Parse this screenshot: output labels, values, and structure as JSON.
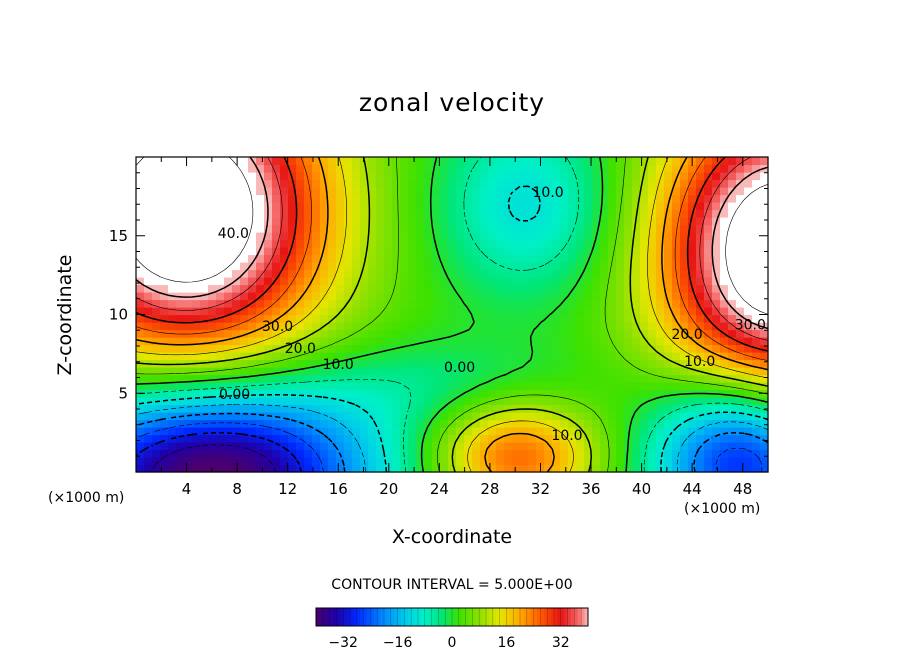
{
  "chart_data": {
    "type": "heatmap",
    "title": "zonal velocity",
    "xlabel": "X-coordinate",
    "ylabel": "Z-coordinate",
    "x_unit": "(×1000 m)",
    "y_unit": "(×1000 m)",
    "xlim": [
      0,
      50
    ],
    "ylim": [
      0,
      20
    ],
    "x_ticks": [
      4,
      8,
      12,
      16,
      20,
      24,
      28,
      32,
      36,
      40,
      44,
      48
    ],
    "y_ticks": [
      5,
      10,
      15
    ],
    "contour_interval": "CONTOUR INTERVAL = 5.000E+00",
    "contour_labels": [
      {
        "text": "40.0",
        "x": 7.7,
        "z": 15.1
      },
      {
        "text": "30.0",
        "x": 11.2,
        "z": 9.2
      },
      {
        "text": "20.0",
        "x": 13.0,
        "z": 7.8
      },
      {
        "text": "10.0",
        "x": 16.0,
        "z": 6.8
      },
      {
        "text": "0.00",
        "x": 7.8,
        "z": 4.9
      },
      {
        "text": "0.00",
        "x": 25.6,
        "z": 6.6
      },
      {
        "text": "10.0",
        "x": 32.6,
        "z": 17.7
      },
      {
        "text": "10.0",
        "x": 34.1,
        "z": 2.3
      },
      {
        "text": "20.0",
        "x": 43.6,
        "z": 8.7
      },
      {
        "text": "30.0",
        "x": 48.6,
        "z": 9.3
      },
      {
        "text": "10.0",
        "x": 44.6,
        "z": 7.0
      }
    ],
    "colorbar": {
      "range": [
        -40,
        40
      ],
      "ticks": [
        "−32",
        "−16",
        "0",
        "16",
        "32"
      ],
      "tick_values": [
        -32,
        -16,
        0,
        16,
        32
      ]
    },
    "features": [
      {
        "kind": "max",
        "x": 5,
        "z": 15,
        "value": 50,
        "note": "white region (above colour scale)"
      },
      {
        "kind": "max",
        "x": 49,
        "z": 12,
        "value": 48
      },
      {
        "kind": "min",
        "x": 4,
        "z": 0.5,
        "value": -40
      },
      {
        "kind": "min",
        "x": 48,
        "z": 1.5,
        "value": -30
      },
      {
        "kind": "min",
        "x": 30,
        "z": 17,
        "value": -11
      },
      {
        "kind": "max",
        "x": 30,
        "z": 1.5,
        "value": 24
      }
    ]
  }
}
